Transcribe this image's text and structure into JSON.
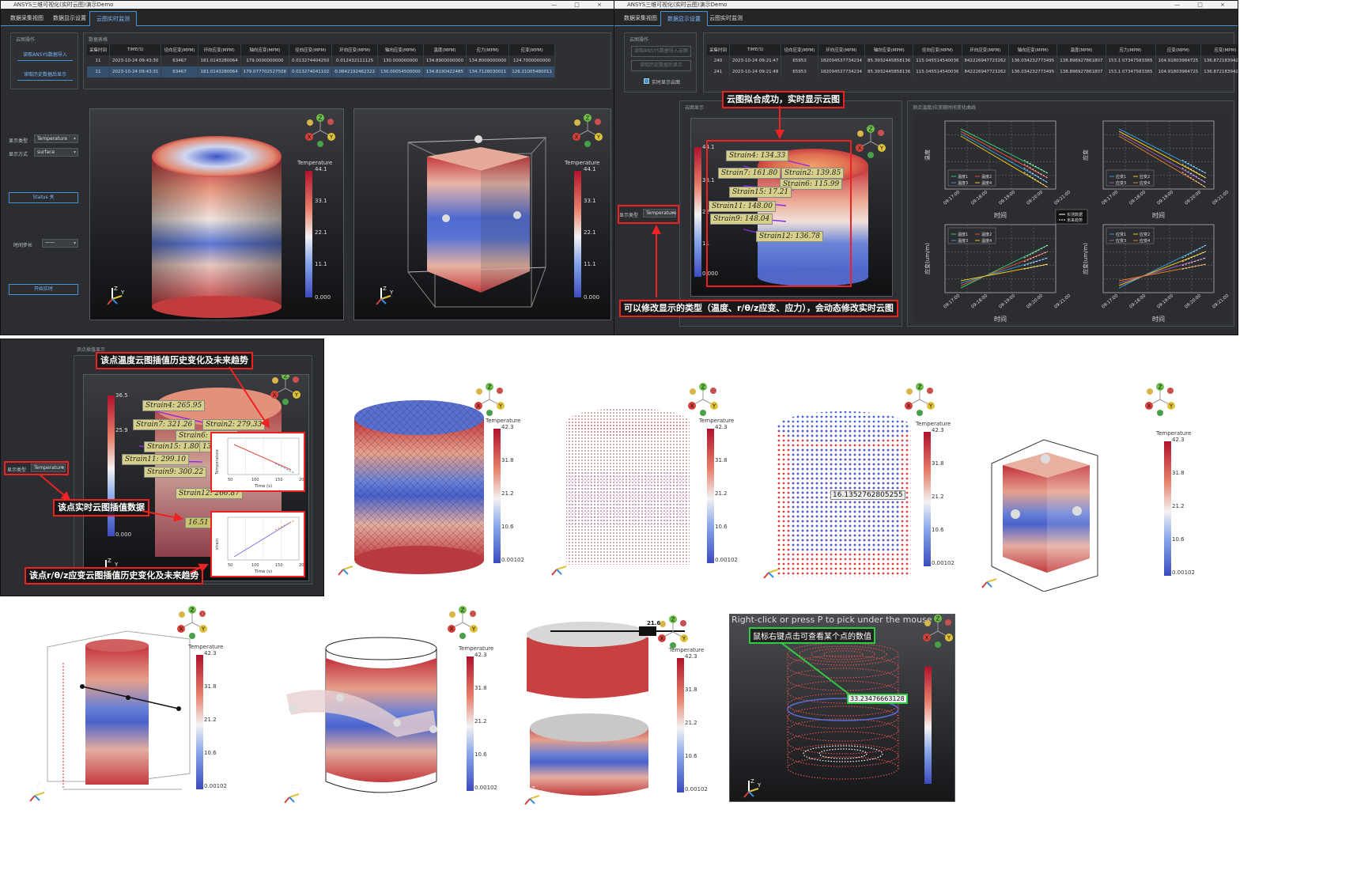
{
  "app": {
    "title": "ANSYS三维可视化(实时云图)演示Demo",
    "tabs": [
      "数据采集视图",
      "数据显示设置",
      "云图实时监测"
    ],
    "window_controls": "— □ ×"
  },
  "left_window": {
    "side_panel_title": "云图操作",
    "side_buttons": [
      "读取ANSYS数据导入",
      "读取历史数据后显示"
    ],
    "table_title": "数据表格",
    "table_headers": [
      "采集时间",
      "TIME(S)",
      "径向应变(MPM)",
      "环向应变(MPM)",
      "轴向应变(MPM)",
      "径向应变(MPM)",
      "环向应变(MPM)",
      "轴向应变(MPM)",
      "温度(MPM)",
      "应力(MPM)",
      "应变(MPM)"
    ],
    "table_rows": [
      [
        "11",
        "2023-10-24 09:43:30",
        "63467",
        "181.0143280064",
        "179.0000000000",
        "0.013274404250",
        "0.012432111125",
        "130.000000000",
        "134.8900000000",
        "134.8009000000",
        "124.7000000000"
      ],
      [
        "11",
        "2023-10-24 09:43:31",
        "63467",
        "181.0143280064",
        "179.077702527508",
        "0.013274041102",
        "0.0842192462322",
        "130.00054500000",
        "134.8190422485",
        "134.7128030011",
        "126.21005480011"
      ]
    ],
    "display_type_label": "显示类型",
    "display_type_value": "Temperature",
    "surface_label": "显示方式",
    "surface_value": "surface",
    "status_button": "Status 关",
    "update_label": "时间步长",
    "update_value": "一一",
    "start_button": "开始实时"
  },
  "right_window": {
    "side_panel_title": "云图操作",
    "side_buttons": [
      "读取ANSYS数据导入云图",
      "读取历史数据后显示"
    ],
    "checkbox_label": "实时显示云图",
    "table_headers": [
      "采集时间",
      "TIME(S)",
      "径向应变(MPM)",
      "环向应变(MPM)",
      "轴向应变(MPM)",
      "径向应变(MPM)",
      "环向应变(MPM)",
      "轴向应变(MPM)",
      "温度(MPM)",
      "应力(MPM)",
      "应变(MPM)",
      "应变(MPM)"
    ],
    "table_rows": [
      [
        "240",
        "2023-10-24 09:21:47",
        "65953",
        "182094537734234",
        "85.3932445858136",
        "115.045514540036",
        "842226947723262",
        "136.034232773495",
        "138.896927861807",
        "153.1 07347583365",
        "104.91803984725",
        "136.872183942100"
      ],
      [
        "241",
        "2023-10-24 09:21:48",
        "65953",
        "182094537734234",
        "85.3932445858136",
        "115.045514540036",
        "842226947723262",
        "136.034232773495",
        "138.896927861807",
        "153.1 07347583365",
        "104.91803984725",
        "136.872183942100"
      ]
    ],
    "display_panel_title": "云图显示",
    "display_type_label": "显示类型",
    "display_type_value": "Temperature",
    "chart_panel_title": "测点温度/应变随时间变化曲线",
    "legend_mid": [
      "实测数据",
      "未来趋势"
    ]
  },
  "strain_tags_top": [
    "Strain4: 134.33",
    "Strain7: 161.80",
    "Strain2: 139.85",
    "Strain6: 115.99",
    "Strain15: 17.21",
    "Strain11: 148.00",
    "Strain9: 148.04",
    "Strain12: 136.78"
  ],
  "strain_tags_mid": [
    "Strain4: 265.95",
    "Strain7: 321.26",
    "Strain2: 279.33",
    "Strain6: 206.88",
    "Strain15: 1.80",
    "13: 27.10",
    "Strain11: 299.10",
    "Strain9: 300.22",
    "Strain12: 266.87"
  ],
  "mid_value_tag": "16.51",
  "annotations": {
    "a1": "云图拟合成功，实时显示云图",
    "a2": "可以修改显示的类型（温度、r/θ/z应变、应力），会动态修改实时云图",
    "a3": "该点温度云图插值历史变化及未来趋势",
    "a4": "该点实时云图插值数据",
    "a5": "该点r/θ/z应变云图插值历史变化及未来趋势",
    "a6": "鼠标右键点击可查看某个点的数值"
  },
  "pick_hint": "Right-click or press P to pick under the mouse",
  "pick_value_1": "16.1352762805255",
  "pick_value_2": "33.23476663128",
  "mid_panel_title": "测点插值显示",
  "mid_display_type_label": "显示类型",
  "mid_display_type_value": "Temperature",
  "colorbar_title": "Temperature",
  "colorbar_ticks_a": [
    "44.1",
    "33.1",
    "22",
    "11",
    "0.000"
  ],
  "colorbar_ticks_b": [
    "42.3",
    "31.8",
    "21.2",
    "10.6",
    "0.00102"
  ],
  "colorbar_ticks_c": [
    "36.5",
    "25.9",
    "",
    "",
    "0.000"
  ],
  "colorbar_ticks_top": [
    "44.1",
    "33.1",
    "22.1",
    "11.1",
    "0.000"
  ],
  "orient_labels": [
    "Z",
    "X",
    "Y"
  ],
  "small_chart": {
    "xlabel": "Time (s)",
    "ylabel_top": "Temperature",
    "ylabel_bottom": "strain",
    "ticks": [
      "50",
      "100",
      "150",
      "200"
    ]
  },
  "charts_2x2": {
    "ylabels": [
      "温度",
      "应变",
      "应变(um/m)",
      "应变(um/m)"
    ],
    "xlabel": "时间",
    "xticks": [
      "09:17:00",
      "09:18:00",
      "09:19:00",
      "09:20:00",
      "09:21:00"
    ],
    "legend_a": [
      "温度1",
      "温度2",
      "温度3",
      "温度4"
    ],
    "legend_b": [
      "应变1",
      "应变2",
      "应变3",
      "应变4"
    ]
  },
  "probe_scale_value": "21.6",
  "colors": {
    "accent": "#4a90d9",
    "annot": "#e22222",
    "dark_bg": "#2b2d30"
  }
}
